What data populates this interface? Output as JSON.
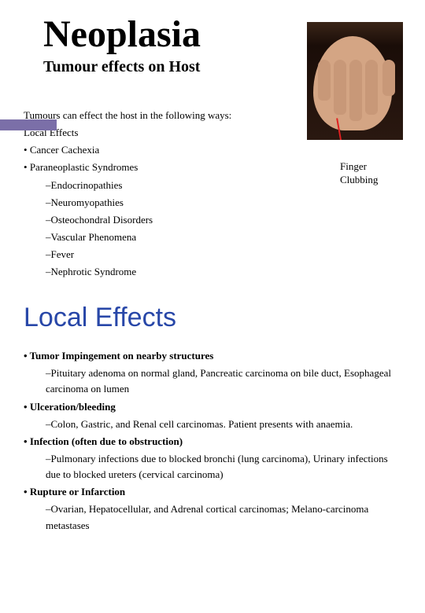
{
  "header": {
    "title": "Neoplasia",
    "subtitle": "Tumour effects on Host"
  },
  "image": {
    "caption_line1": "Finger",
    "caption_line2": "Clubbing"
  },
  "intro": "Tumours can effect the host in the following ways:",
  "list1": {
    "item0": "Local Effects",
    "item1": "Cancer Cachexia",
    "item2": "Paraneoplastic Syndromes",
    "sub0": "Endocrinopathies",
    "sub1": "Neuromyopathies",
    "sub2": "Osteochondral Disorders",
    "sub3": "Vascular Phenomena",
    "sub4": "Fever",
    "sub5": "Nephrotic Syndrome"
  },
  "section2": {
    "title": "Local Effects",
    "b0": "Tumor Impingement on nearby structures",
    "b0sub": "Pituitary adenoma on normal gland, Pancreatic carcinoma on bile duct, Esophageal carcinoma on lumen",
    "b1": "Ulceration/bleeding",
    "b1sub": "Colon, Gastric, and Renal cell carcinomas. Patient presents with anaemia.",
    "b2": "Infection (often due to obstruction)",
    "b2sub": "Pulmonary infections due to blocked bronchi (lung carcinoma), Urinary infections due to blocked ureters (cervical carcinoma)",
    "b3": "Rupture or Infarction",
    "b3sub": "Ovarian, Hepatocellular, and Adrenal cortical carcinomas; Melano-carcinoma metastases"
  }
}
